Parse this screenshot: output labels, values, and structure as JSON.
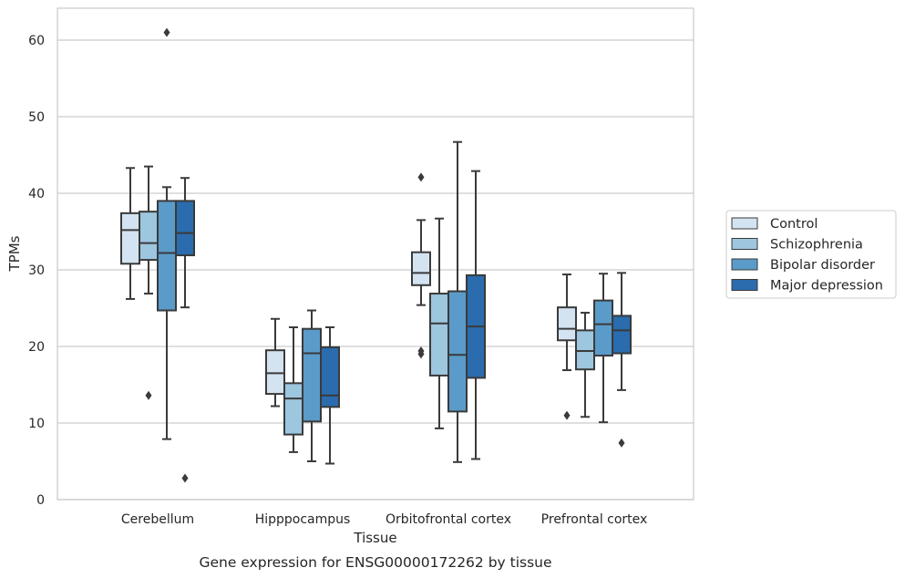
{
  "chart_data": {
    "type": "box",
    "title": "Gene expression for ENSG00000172262 by tissue",
    "xlabel": "Tissue",
    "ylabel": "TPMs",
    "ylim": [
      0,
      64
    ],
    "yticks": [
      0,
      10,
      20,
      30,
      40,
      50,
      60
    ],
    "grid": "horizontal",
    "legend_position": "right",
    "categories": [
      "Cerebellum",
      "Hipppocampus",
      "Orbitofrontal cortex",
      "Prefrontal cortex"
    ],
    "series": [
      {
        "name": "Control",
        "color": "#d3e3f1",
        "boxes": [
          {
            "whislo": 26.2,
            "q1": 30.8,
            "med": 35.2,
            "q3": 37.4,
            "whishi": 43.3,
            "fliers": []
          },
          {
            "whislo": 12.2,
            "q1": 13.8,
            "med": 16.5,
            "q3": 19.5,
            "whishi": 23.6,
            "fliers": []
          },
          {
            "whislo": 25.4,
            "q1": 28.0,
            "med": 29.6,
            "q3": 32.3,
            "whishi": 36.5,
            "fliers": [
              42.1,
              19.4,
              19.0
            ]
          },
          {
            "whislo": 16.9,
            "q1": 20.8,
            "med": 22.3,
            "q3": 25.1,
            "whishi": 29.4,
            "fliers": [
              11.0
            ]
          }
        ]
      },
      {
        "name": "Schizophrenia",
        "color": "#9dc6df",
        "boxes": [
          {
            "whislo": 26.9,
            "q1": 31.3,
            "med": 33.5,
            "q3": 37.6,
            "whishi": 43.5,
            "fliers": [
              13.6
            ]
          },
          {
            "whislo": 6.2,
            "q1": 8.5,
            "med": 13.2,
            "q3": 15.2,
            "whishi": 22.5,
            "fliers": []
          },
          {
            "whislo": 9.3,
            "q1": 16.2,
            "med": 23.0,
            "q3": 26.9,
            "whishi": 36.7,
            "fliers": []
          },
          {
            "whislo": 10.8,
            "q1": 17.0,
            "med": 19.4,
            "q3": 22.1,
            "whishi": 24.4,
            "fliers": []
          }
        ]
      },
      {
        "name": "Bipolar disorder",
        "color": "#5b9bc9",
        "boxes": [
          {
            "whislo": 7.9,
            "q1": 24.7,
            "med": 32.2,
            "q3": 39.0,
            "whishi": 40.8,
            "fliers": [
              61.0
            ]
          },
          {
            "whislo": 5.0,
            "q1": 10.2,
            "med": 19.1,
            "q3": 22.3,
            "whishi": 24.7,
            "fliers": []
          },
          {
            "whislo": 4.9,
            "q1": 11.5,
            "med": 18.9,
            "q3": 27.2,
            "whishi": 46.7,
            "fliers": []
          },
          {
            "whislo": 10.1,
            "q1": 18.8,
            "med": 22.9,
            "q3": 26.0,
            "whishi": 29.5,
            "fliers": []
          }
        ]
      },
      {
        "name": "Major depression",
        "color": "#2a6cad",
        "boxes": [
          {
            "whislo": 25.1,
            "q1": 31.9,
            "med": 34.8,
            "q3": 39.0,
            "whishi": 42.0,
            "fliers": [
              2.8
            ]
          },
          {
            "whislo": 4.7,
            "q1": 12.1,
            "med": 13.6,
            "q3": 19.9,
            "whishi": 22.5,
            "fliers": []
          },
          {
            "whislo": 5.3,
            "q1": 15.9,
            "med": 22.6,
            "q3": 29.3,
            "whishi": 42.9,
            "fliers": []
          },
          {
            "whislo": 14.3,
            "q1": 19.1,
            "med": 22.1,
            "q3": 24.0,
            "whishi": 29.6,
            "fliers": [
              7.4
            ]
          }
        ]
      }
    ]
  }
}
